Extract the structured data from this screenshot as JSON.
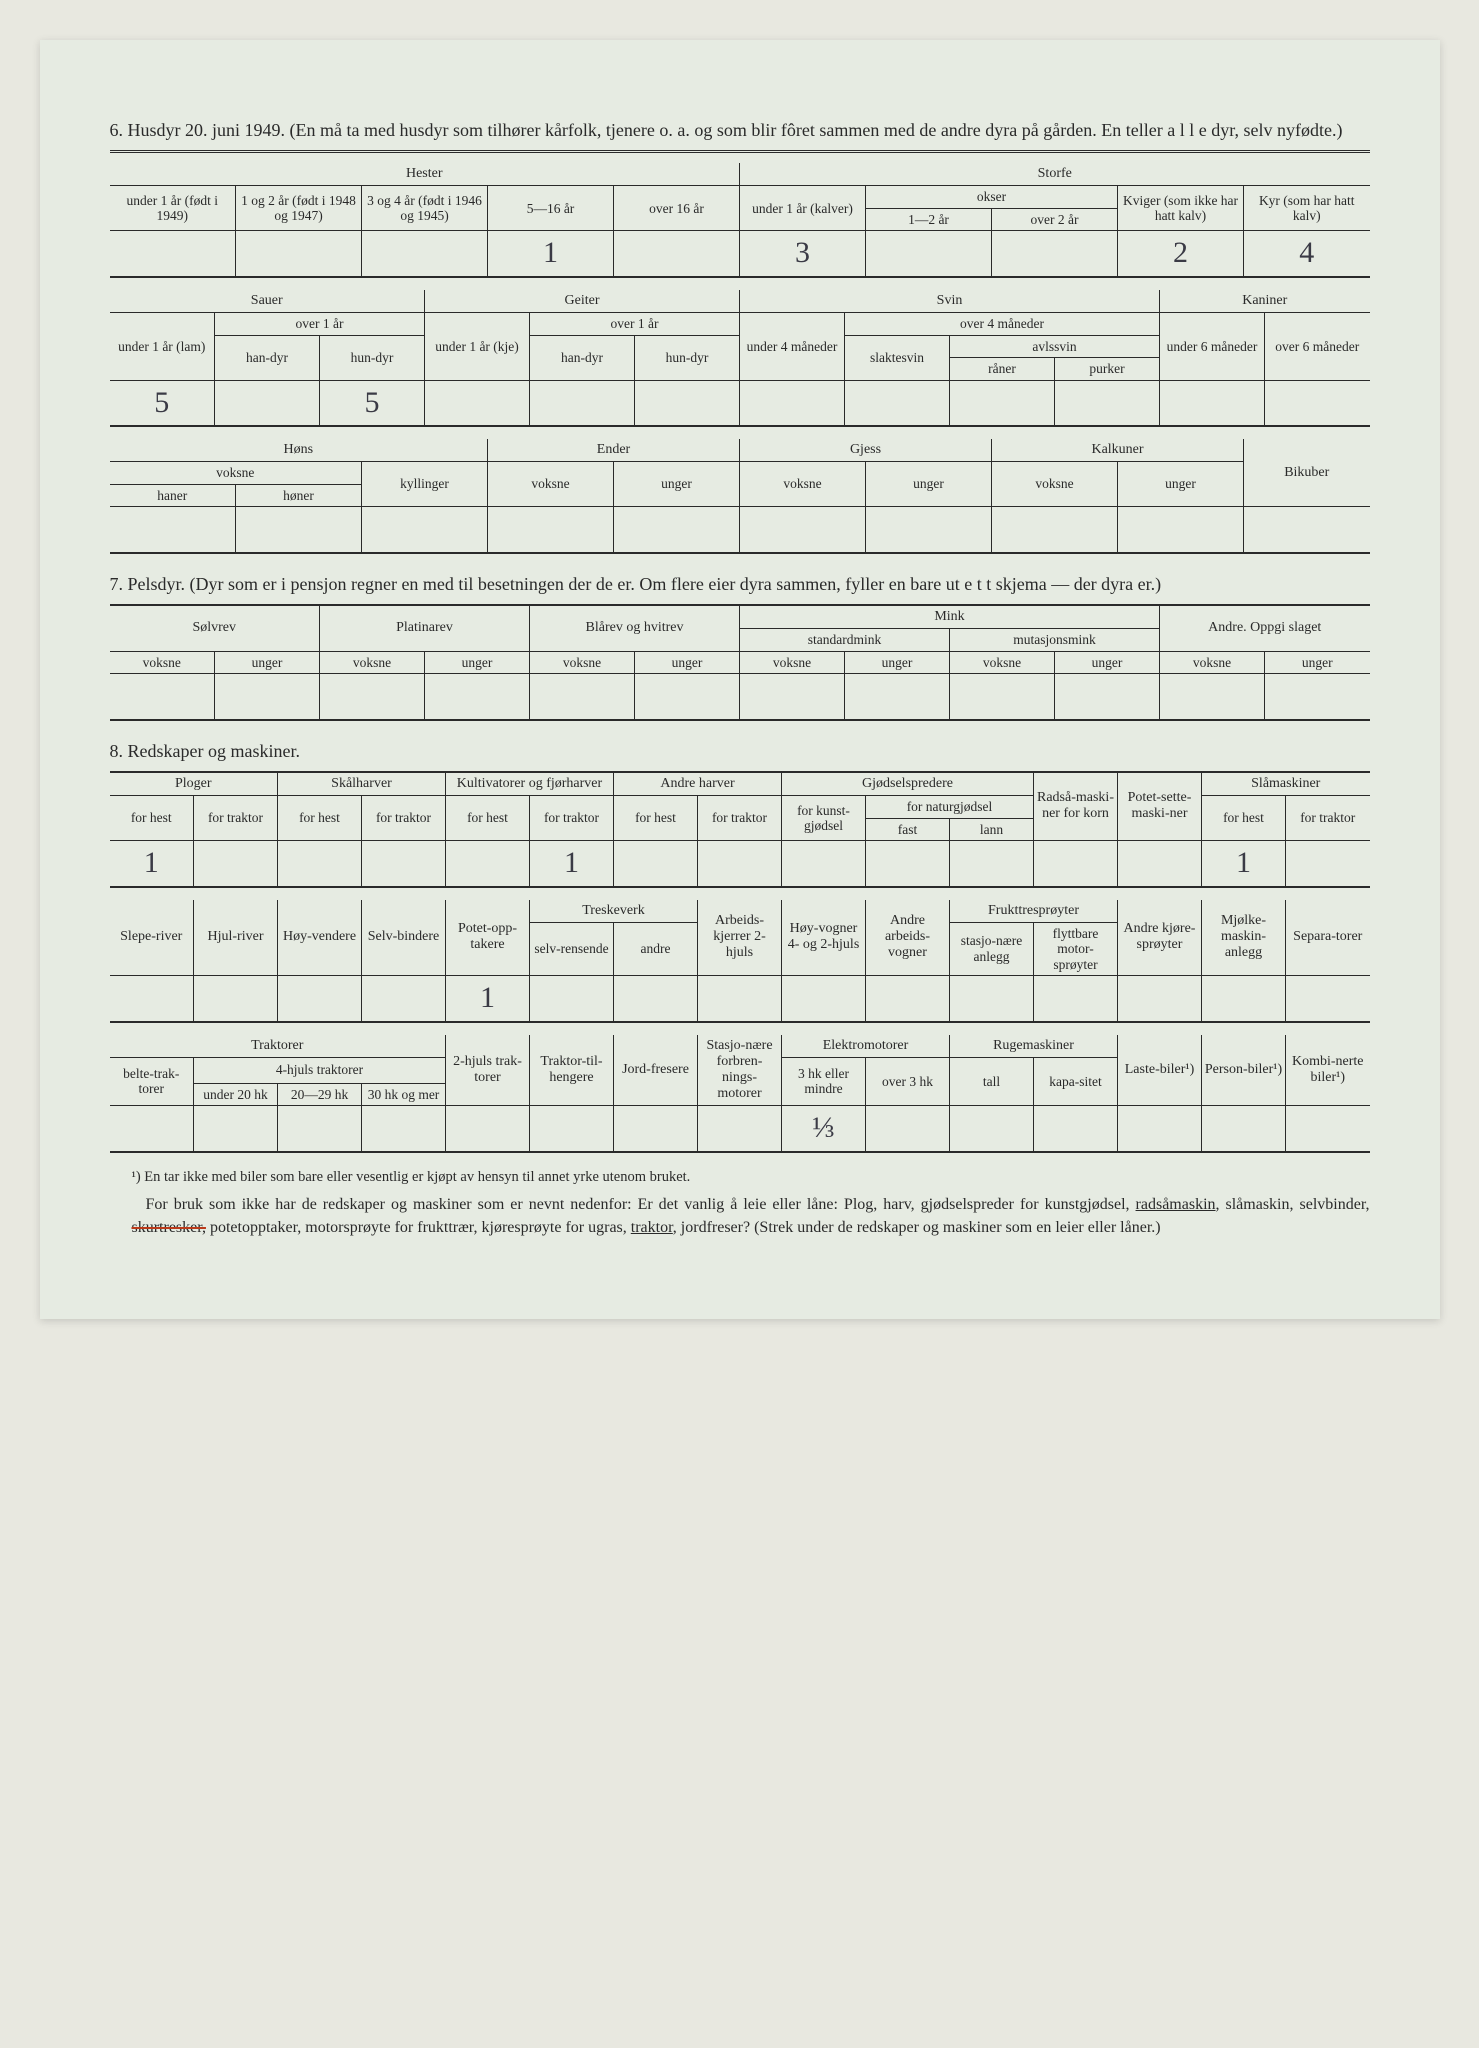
{
  "section6": {
    "number": "6.",
    "title": "Husdyr 20. juni 1949.  (En må ta med husdyr som tilhører kårfolk, tjenere o. a. og som blir fôret sammen med de andre dyra på gården.   En teller a l l e dyr, selv nyfødte.)",
    "t1": {
      "hester": "Hester",
      "storfe": "Storfe",
      "h_u1": "under 1 år (født i 1949)",
      "h_1_2": "1 og 2 år (født i 1948 og 1947)",
      "h_3_4": "3 og 4 år (født i 1946 og 1945)",
      "h_5_16": "5—16 år",
      "h_o16": "over 16 år",
      "s_u1": "under 1 år (kalver)",
      "s_okser": "okser",
      "s_1_2": "1—2 år",
      "s_o2": "over 2 år",
      "s_kviger": "Kviger (som ikke har hatt kalv)",
      "s_kyr": "Kyr (som har hatt kalv)",
      "v": {
        "c4": "1",
        "c6": "3",
        "c9": "2",
        "c10": "4"
      }
    },
    "t2": {
      "sauer": "Sauer",
      "geiter": "Geiter",
      "svin": "Svin",
      "kaniner": "Kaniner",
      "sa_u1": "under 1 år (lam)",
      "sa_o1": "over 1 år",
      "sa_han": "han-dyr",
      "sa_hun": "hun-dyr",
      "ge_u1": "under 1 år (kje)",
      "ge_o1": "over 1 år",
      "ge_han": "han-dyr",
      "ge_hun": "hun-dyr",
      "sv_u4": "under 4 måneder",
      "sv_o4": "over 4 måneder",
      "sv_slakt": "slaktesvin",
      "sv_avl": "avlssvin",
      "sv_ran": "råner",
      "sv_pur": "purker",
      "ka_u6": "under 6 måneder",
      "ka_o6": "over 6 måneder",
      "v": {
        "c1": "5",
        "c3": "5"
      }
    },
    "t3": {
      "hons": "Høns",
      "ender": "Ender",
      "gjess": "Gjess",
      "kalkuner": "Kalkuner",
      "bikuber": "Bikuber",
      "voksne": "voksne",
      "haner": "haner",
      "honer": "høner",
      "kyllinger": "kyllinger",
      "unger": "unger"
    }
  },
  "section7": {
    "number": "7.",
    "title": "Pelsdyr.   (Dyr som er i pensjon regner en med til besetningen der de er.   Om flere eier dyra sammen, fyller en bare ut e t t skjema — der dyra er.)",
    "solvrev": "Sølvrev",
    "platinarev": "Platinarev",
    "blarev": "Blårev og hvitrev",
    "mink": "Mink",
    "standardmink": "standardmink",
    "mutasjonsmink": "mutasjonsmink",
    "andre": "Andre. Oppgi slaget",
    "voksne": "voksne",
    "unger": "unger"
  },
  "section8": {
    "number": "8.",
    "title": "Redskaper og maskiner.",
    "t1": {
      "ploger": "Ploger",
      "skalharver": "Skålharver",
      "kultiv": "Kultivatorer og fjørharver",
      "andreharver": "Andre harver",
      "gjodsel": "Gjødselspredere",
      "radsa": "Radså-maski-ner for korn",
      "potet": "Potet-sette-maski-ner",
      "slamaskiner": "Slåmaskiner",
      "forhest": "for hest",
      "fortraktor": "for traktor",
      "forkunst": "for kunst-gjødsel",
      "fornatur": "for naturgjødsel",
      "fast": "fast",
      "lann": "lann",
      "v": {
        "c1": "1",
        "c6": "1",
        "c14": "1"
      }
    },
    "t2": {
      "slepe": "Slepe-river",
      "hjul": "Hjul-river",
      "hoy": "Høy-vendere",
      "selv": "Selv-bindere",
      "potetopp": "Potet-opp-takere",
      "treske": "Treskeverk",
      "selvrens": "selv-rensende",
      "andre_tv": "andre",
      "arbeids": "Arbeids-kjerrer 2-hjuls",
      "hoyvog": "Høy-vogner 4- og 2-hjuls",
      "andrevog": "Andre arbeids-vogner",
      "frukt": "Frukttresprøyter",
      "stasj": "stasjo-nære anlegg",
      "flytt": "flyttbare motor-sprøyter",
      "andrekj": "Andre kjøre-sprøyter",
      "mjolk": "Mjølke-maskin-anlegg",
      "sepa": "Separa-torer",
      "v": {
        "c5": "1"
      }
    },
    "t3": {
      "traktorer": "Traktorer",
      "belte": "belte-trak-torer",
      "4hjuls": "4-hjuls traktorer",
      "u20": "under 20 hk",
      "20_29": "20—29 hk",
      "30mer": "30 hk og mer",
      "2hjuls": "2-hjuls trak-torer",
      "tilh": "Traktor-til-hengere",
      "jord": "Jord-fresere",
      "stasjon": "Stasjo-nære forbren-nings-motorer",
      "elektro": "Elektromotorer",
      "3hk": "3 hk eller mindre",
      "o3hk": "over 3 hk",
      "ruge": "Rugemaskiner",
      "tall": "tall",
      "kapa": "kapa-sitet",
      "laste": "Laste-biler¹)",
      "person": "Person-biler¹)",
      "kombi": "Kombi-nerte biler¹)",
      "v": {
        "c9": "⅓"
      }
    }
  },
  "footnote": "¹) En tar ikke med biler som bare eller vesentlig er kjøpt av hensyn til annet yrke utenom bruket.",
  "footpara": {
    "p1": "For bruk som ikke har de redskaper og maskiner som er nevnt nedenfor: Er det vanlig å leie eller låne:  Plog, harv, gjødselspreder for kunstgjødsel, ",
    "u1": "radsåmaskin",
    "p2": ", slåmaskin, selvbinder, ",
    "strike": "skurtresker,",
    "p3": " potetopptaker, motorsprøyte for frukttrær, kjøresprøyte for ugras, ",
    "u2": "traktor",
    "p4": ", jordfreser?  (Strek under de redskaper og maskiner som en leier eller låner.)"
  }
}
